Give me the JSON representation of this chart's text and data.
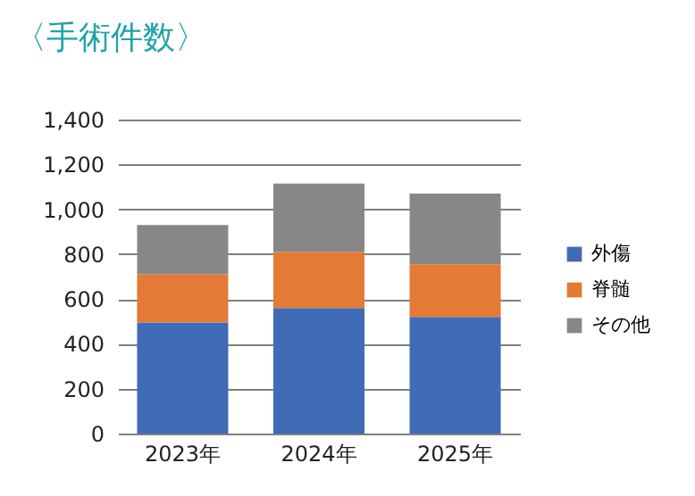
{
  "chart_data": {
    "type": "bar",
    "title": "〈手術件数〉",
    "categories": [
      "2023年",
      "2024年",
      "2025年"
    ],
    "stacked": true,
    "series": [
      {
        "name": "外傷",
        "color": "#3f6cb5",
        "values": [
          495,
          560,
          520
        ]
      },
      {
        "name": "脊髄",
        "color": "#e37a35",
        "values": [
          215,
          250,
          235
        ]
      },
      {
        "name": "その他",
        "color": "#878787",
        "values": [
          220,
          305,
          315
        ]
      }
    ],
    "ylim": [
      0,
      1400
    ],
    "yticks": [
      0,
      200,
      400,
      600,
      800,
      {
        "value": 1000,
        "label": "1,000"
      },
      {
        "value": 1200,
        "label": "1,200"
      },
      {
        "value": 1400,
        "label": "1,400"
      }
    ],
    "grid": "y",
    "legend": "right"
  }
}
